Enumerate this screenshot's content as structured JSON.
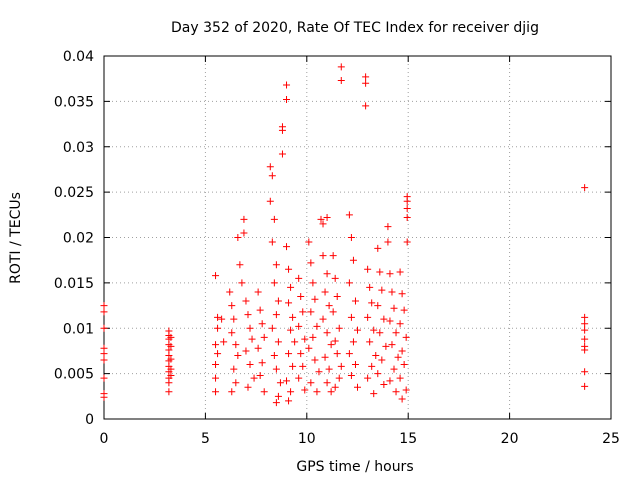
{
  "chart_data": {
    "type": "scatter",
    "title": "Day 352 of 2020, Rate Of TEC Index for receiver djig",
    "xlabel": "GPS time / hours",
    "ylabel": "ROTI / TECUs",
    "xlim": [
      0,
      25
    ],
    "ylim": [
      0,
      0.04
    ],
    "x_ticks": [
      0,
      5,
      10,
      15,
      20,
      25
    ],
    "y_ticks": [
      0,
      0.005,
      0.01,
      0.015,
      0.02,
      0.025,
      0.03,
      0.035,
      0.04
    ],
    "x_tick_labels": [
      "0",
      "5",
      "10",
      "15",
      "20",
      "25"
    ],
    "y_tick_labels": [
      "0",
      "0.005",
      "0.01",
      "0.015",
      "0.02",
      "0.025",
      "0.03",
      "0.035",
      "0.04"
    ],
    "grid": true,
    "marker": "+",
    "series": [
      {
        "name": "ROTI",
        "color": "#ff0000",
        "points": [
          [
            0.0,
            0.0125
          ],
          [
            0.0,
            0.0118
          ],
          [
            0.0,
            0.01
          ],
          [
            0.0,
            0.0078
          ],
          [
            0.0,
            0.0072
          ],
          [
            0.0,
            0.0065
          ],
          [
            0.0,
            0.0045
          ],
          [
            0.0,
            0.0028
          ],
          [
            0.0,
            0.0024
          ],
          [
            3.2,
            0.0097
          ],
          [
            3.2,
            0.0092
          ],
          [
            3.2,
            0.0088
          ],
          [
            3.2,
            0.0082
          ],
          [
            3.2,
            0.0076
          ],
          [
            3.2,
            0.007
          ],
          [
            3.2,
            0.0064
          ],
          [
            3.2,
            0.0058
          ],
          [
            3.2,
            0.0052
          ],
          [
            3.2,
            0.0045
          ],
          [
            3.2,
            0.004
          ],
          [
            3.2,
            0.003
          ],
          [
            3.3,
            0.009
          ],
          [
            3.3,
            0.008
          ],
          [
            3.3,
            0.0066
          ],
          [
            3.3,
            0.0055
          ],
          [
            3.3,
            0.0048
          ],
          [
            5.5,
            0.0158
          ],
          [
            5.6,
            0.0112
          ],
          [
            5.6,
            0.01
          ],
          [
            5.5,
            0.0082
          ],
          [
            5.6,
            0.0072
          ],
          [
            5.5,
            0.006
          ],
          [
            5.5,
            0.0045
          ],
          [
            5.5,
            0.003
          ],
          [
            5.8,
            0.011
          ],
          [
            5.9,
            0.0085
          ],
          [
            6.2,
            0.014
          ],
          [
            6.3,
            0.0125
          ],
          [
            6.4,
            0.011
          ],
          [
            6.3,
            0.0095
          ],
          [
            6.5,
            0.0082
          ],
          [
            6.6,
            0.007
          ],
          [
            6.4,
            0.0055
          ],
          [
            6.5,
            0.004
          ],
          [
            6.3,
            0.003
          ],
          [
            6.6,
            0.02
          ],
          [
            6.7,
            0.017
          ],
          [
            6.8,
            0.015
          ],
          [
            7.0,
            0.013
          ],
          [
            7.1,
            0.0115
          ],
          [
            7.2,
            0.01
          ],
          [
            7.3,
            0.0088
          ],
          [
            7.0,
            0.0075
          ],
          [
            7.2,
            0.006
          ],
          [
            7.4,
            0.0045
          ],
          [
            7.1,
            0.0035
          ],
          [
            6.9,
            0.0205
          ],
          [
            6.9,
            0.022
          ],
          [
            7.6,
            0.014
          ],
          [
            7.7,
            0.012
          ],
          [
            7.8,
            0.0105
          ],
          [
            7.9,
            0.009
          ],
          [
            7.6,
            0.0078
          ],
          [
            7.8,
            0.0062
          ],
          [
            7.7,
            0.0048
          ],
          [
            7.9,
            0.003
          ],
          [
            8.2,
            0.0278
          ],
          [
            8.3,
            0.0268
          ],
          [
            8.2,
            0.024
          ],
          [
            8.4,
            0.022
          ],
          [
            8.3,
            0.0195
          ],
          [
            8.5,
            0.017
          ],
          [
            8.4,
            0.015
          ],
          [
            8.6,
            0.013
          ],
          [
            8.5,
            0.0115
          ],
          [
            8.3,
            0.01
          ],
          [
            8.6,
            0.0085
          ],
          [
            8.4,
            0.007
          ],
          [
            8.5,
            0.0055
          ],
          [
            8.7,
            0.004
          ],
          [
            8.6,
            0.0025
          ],
          [
            8.5,
            0.0018
          ],
          [
            8.8,
            0.0322
          ],
          [
            8.8,
            0.0318
          ],
          [
            8.8,
            0.0292
          ],
          [
            9.0,
            0.0368
          ],
          [
            9.0,
            0.0352
          ],
          [
            9.0,
            0.019
          ],
          [
            9.1,
            0.0165
          ],
          [
            9.2,
            0.0145
          ],
          [
            9.1,
            0.0128
          ],
          [
            9.3,
            0.0112
          ],
          [
            9.2,
            0.0098
          ],
          [
            9.4,
            0.0085
          ],
          [
            9.1,
            0.0072
          ],
          [
            9.3,
            0.0058
          ],
          [
            9.0,
            0.0042
          ],
          [
            9.2,
            0.003
          ],
          [
            9.1,
            0.002
          ],
          [
            9.6,
            0.0155
          ],
          [
            9.7,
            0.0135
          ],
          [
            9.8,
            0.0118
          ],
          [
            9.6,
            0.0102
          ],
          [
            9.9,
            0.0088
          ],
          [
            9.7,
            0.0072
          ],
          [
            9.8,
            0.0058
          ],
          [
            9.6,
            0.0045
          ],
          [
            9.9,
            0.0032
          ],
          [
            10.1,
            0.0195
          ],
          [
            10.2,
            0.0172
          ],
          [
            10.3,
            0.015
          ],
          [
            10.4,
            0.0132
          ],
          [
            10.2,
            0.0118
          ],
          [
            10.5,
            0.0102
          ],
          [
            10.3,
            0.009
          ],
          [
            10.1,
            0.0078
          ],
          [
            10.4,
            0.0065
          ],
          [
            10.6,
            0.0052
          ],
          [
            10.2,
            0.004
          ],
          [
            10.5,
            0.003
          ],
          [
            10.7,
            0.022
          ],
          [
            10.8,
            0.0215
          ],
          [
            11.0,
            0.0222
          ],
          [
            10.8,
            0.018
          ],
          [
            11.0,
            0.016
          ],
          [
            10.9,
            0.014
          ],
          [
            11.1,
            0.0125
          ],
          [
            10.8,
            0.011
          ],
          [
            11.0,
            0.0095
          ],
          [
            11.2,
            0.0082
          ],
          [
            10.9,
            0.0068
          ],
          [
            11.1,
            0.0055
          ],
          [
            11.0,
            0.004
          ],
          [
            11.2,
            0.003
          ],
          [
            11.3,
            0.018
          ],
          [
            11.4,
            0.0155
          ],
          [
            11.5,
            0.0135
          ],
          [
            11.3,
            0.0118
          ],
          [
            11.6,
            0.01
          ],
          [
            11.4,
            0.0086
          ],
          [
            11.5,
            0.0072
          ],
          [
            11.7,
            0.0058
          ],
          [
            11.6,
            0.0045
          ],
          [
            11.4,
            0.0035
          ],
          [
            11.7,
            0.0388
          ],
          [
            11.7,
            0.0373
          ],
          [
            12.1,
            0.0225
          ],
          [
            12.2,
            0.02
          ],
          [
            12.3,
            0.0175
          ],
          [
            12.1,
            0.015
          ],
          [
            12.4,
            0.013
          ],
          [
            12.2,
            0.0112
          ],
          [
            12.5,
            0.0098
          ],
          [
            12.3,
            0.0085
          ],
          [
            12.1,
            0.0072
          ],
          [
            12.4,
            0.006
          ],
          [
            12.2,
            0.0048
          ],
          [
            12.5,
            0.0035
          ],
          [
            12.9,
            0.0377
          ],
          [
            12.9,
            0.037
          ],
          [
            12.9,
            0.0345
          ],
          [
            13.0,
            0.0165
          ],
          [
            13.1,
            0.0145
          ],
          [
            13.2,
            0.0128
          ],
          [
            13.0,
            0.0112
          ],
          [
            13.3,
            0.0098
          ],
          [
            13.1,
            0.0085
          ],
          [
            13.4,
            0.007
          ],
          [
            13.2,
            0.0058
          ],
          [
            13.0,
            0.0045
          ],
          [
            13.3,
            0.0028
          ],
          [
            13.5,
            0.0188
          ],
          [
            13.6,
            0.0162
          ],
          [
            13.7,
            0.0142
          ],
          [
            13.5,
            0.0125
          ],
          [
            13.8,
            0.011
          ],
          [
            13.6,
            0.0095
          ],
          [
            13.9,
            0.008
          ],
          [
            13.7,
            0.0065
          ],
          [
            13.5,
            0.005
          ],
          [
            13.8,
            0.0038
          ],
          [
            14.0,
            0.0212
          ],
          [
            14.0,
            0.0195
          ],
          [
            14.1,
            0.016
          ],
          [
            14.2,
            0.014
          ],
          [
            14.3,
            0.0122
          ],
          [
            14.1,
            0.0108
          ],
          [
            14.4,
            0.0095
          ],
          [
            14.2,
            0.0082
          ],
          [
            14.5,
            0.0068
          ],
          [
            14.3,
            0.0055
          ],
          [
            14.1,
            0.0042
          ],
          [
            14.4,
            0.003
          ],
          [
            14.6,
            0.0162
          ],
          [
            14.7,
            0.0138
          ],
          [
            14.8,
            0.012
          ],
          [
            14.6,
            0.0105
          ],
          [
            14.9,
            0.009
          ],
          [
            14.7,
            0.0075
          ],
          [
            14.8,
            0.006
          ],
          [
            14.6,
            0.0045
          ],
          [
            14.9,
            0.0032
          ],
          [
            14.7,
            0.0022
          ],
          [
            14.95,
            0.0245
          ],
          [
            14.95,
            0.024
          ],
          [
            14.95,
            0.0232
          ],
          [
            14.95,
            0.0222
          ],
          [
            14.95,
            0.0195
          ],
          [
            23.7,
            0.0255
          ],
          [
            23.7,
            0.0112
          ],
          [
            23.7,
            0.0105
          ],
          [
            23.7,
            0.0098
          ],
          [
            23.7,
            0.0088
          ],
          [
            23.7,
            0.008
          ],
          [
            23.7,
            0.0076
          ],
          [
            23.7,
            0.0052
          ],
          [
            23.7,
            0.0036
          ]
        ]
      }
    ]
  }
}
